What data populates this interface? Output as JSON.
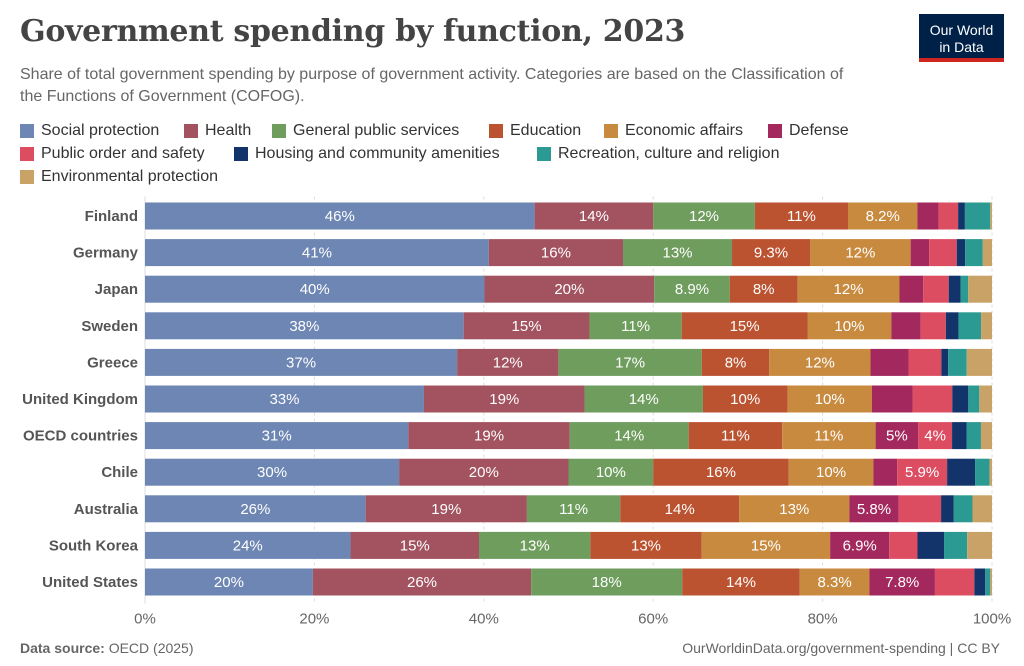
{
  "header": {
    "title": "Government spending by function, 2023",
    "subtitle": "Share of total government spending by purpose of government activity. Categories are based on the Classification of the Functions of Government (COFOG).",
    "logo_line1": "Our World",
    "logo_line2": "in Data"
  },
  "footer": {
    "source_label": "Data source:",
    "source_value": "OECD (2025)",
    "url": "OurWorldinData.org/government-spending | CC BY"
  },
  "chart_data": {
    "type": "bar",
    "orientation": "horizontal",
    "stacked": true,
    "title": "Government spending by function, 2023",
    "xlabel": "",
    "ylabel": "",
    "xlim": [
      0,
      100
    ],
    "x_ticks": [
      "0%",
      "20%",
      "40%",
      "60%",
      "80%",
      "100%"
    ],
    "grid": true,
    "legend_position": "top",
    "categories": [
      "Finland",
      "Germany",
      "Japan",
      "Sweden",
      "Greece",
      "United Kingdom",
      "OECD countries",
      "Chile",
      "Australia",
      "South Korea",
      "United States"
    ],
    "series": [
      {
        "name": "Social protection",
        "color": "#6d86b3",
        "values": [
          46,
          41,
          40,
          38,
          37,
          33,
          31,
          30,
          26,
          24,
          20
        ],
        "labels": [
          "46%",
          "41%",
          "40%",
          "38%",
          "37%",
          "33%",
          "31%",
          "30%",
          "26%",
          "24%",
          "20%"
        ]
      },
      {
        "name": "Health",
        "color": "#a2535f",
        "values": [
          14,
          16,
          20,
          15,
          12,
          19,
          19,
          20,
          19,
          15,
          26
        ],
        "labels": [
          "14%",
          "16%",
          "20%",
          "15%",
          "12%",
          "19%",
          "19%",
          "20%",
          "19%",
          "15%",
          "26%"
        ]
      },
      {
        "name": "General public services",
        "color": "#6f9d5e",
        "values": [
          12,
          13,
          8.9,
          11,
          17,
          14,
          14,
          10,
          11,
          13,
          18
        ],
        "labels": [
          "12%",
          "13%",
          "8.9%",
          "11%",
          "17%",
          "14%",
          "14%",
          "10%",
          "11%",
          "13%",
          "18%"
        ]
      },
      {
        "name": "Education",
        "color": "#bb5230",
        "values": [
          11,
          9.3,
          8,
          15,
          8,
          10,
          11,
          16,
          14,
          13,
          14
        ],
        "labels": [
          "11%",
          "9.3%",
          "8%",
          "15%",
          "8%",
          "10%",
          "11%",
          "16%",
          "14%",
          "13%",
          "14%"
        ]
      },
      {
        "name": "Economic affairs",
        "color": "#c78a3f",
        "values": [
          8.2,
          12,
          12,
          10,
          12,
          10,
          11,
          10,
          13,
          15,
          8.3
        ],
        "labels": [
          "8.2%",
          "12%",
          "12%",
          "10%",
          "12%",
          "10%",
          "11%",
          "10%",
          "13%",
          "15%",
          "8.3%"
        ]
      },
      {
        "name": "Defense",
        "color": "#a2285e",
        "values": [
          2.5,
          2.2,
          2.8,
          3.5,
          4.5,
          4.8,
          5,
          2.8,
          5.8,
          6.9,
          7.8
        ],
        "labels": [
          "",
          "",
          "",
          "",
          "",
          "",
          "5%",
          "",
          "5.8%",
          "6.9%",
          "7.8%"
        ]
      },
      {
        "name": "Public order and safety",
        "color": "#dc4d62",
        "values": [
          2.3,
          3.3,
          3,
          3,
          3.9,
          4.7,
          4,
          5.9,
          5,
          3.3,
          4.7
        ],
        "labels": [
          "",
          "",
          "",
          "",
          "",
          "",
          "4%",
          "5.9%",
          "",
          "",
          ""
        ]
      },
      {
        "name": "Housing and community amenities",
        "color": "#13346b",
        "values": [
          0.8,
          1,
          1.4,
          1.5,
          0.8,
          1.9,
          1.7,
          3.3,
          1.5,
          3.1,
          1.3
        ],
        "labels": [
          "",
          "",
          "",
          "",
          "",
          "",
          "",
          "",
          "",
          "",
          ""
        ]
      },
      {
        "name": "Recreation, culture and religion",
        "color": "#2a9a92",
        "values": [
          3,
          2.1,
          0.9,
          2.7,
          2.2,
          1.3,
          1.7,
          1.7,
          2.2,
          2.7,
          0.6
        ],
        "labels": [
          "",
          "",
          "",
          "",
          "",
          "",
          "",
          "",
          "",
          "",
          ""
        ]
      },
      {
        "name": "Environmental protection",
        "color": "#c9a267",
        "values": [
          0.2,
          1.1,
          2.8,
          1.3,
          3,
          1.5,
          1.3,
          0.3,
          2.3,
          2.9,
          0.2
        ],
        "labels": [
          "",
          "",
          "",
          "",
          "",
          "",
          "",
          "",
          "",
          "",
          ""
        ]
      }
    ]
  }
}
